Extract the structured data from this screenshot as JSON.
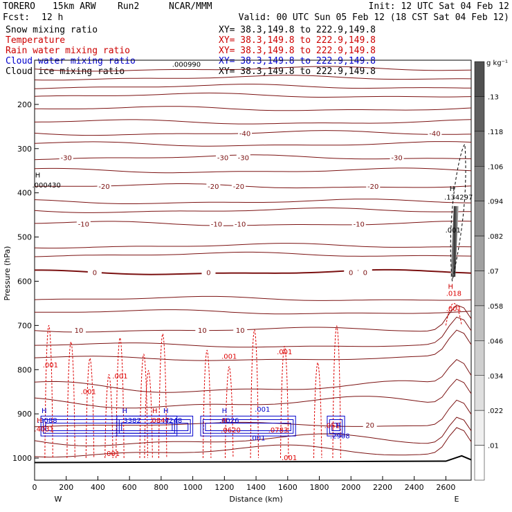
{
  "header": {
    "model": "TORERO",
    "resolution": "15km ARW",
    "run": "Run2",
    "org": "NCAR/MMM",
    "init": "Init: 12 UTC Sat 04 Feb 12",
    "fcst_label": "Fcst:",
    "fcst_value": "12 h",
    "valid": "Valid: 00 UTC Sun 05 Feb 12 (18 CST Sat 04 Feb 12)"
  },
  "fields": [
    {
      "name": "Snow mixing ratio",
      "xy": "XY=  38.3,149.8 to 222.9,149.8",
      "color": "#000000"
    },
    {
      "name": "Temperature",
      "xy": "XY=  38.3,149.8 to 222.9,149.8",
      "color": "#cc0000"
    },
    {
      "name": "Rain water mixing ratio",
      "xy": "XY=  38.3,149.8 to 222.9,149.8",
      "color": "#cc0000"
    },
    {
      "name": "Cloud water mixing ratio",
      "xy": "XY=  38.3,149.8 to 222.9,149.8",
      "color": "#0000cc"
    },
    {
      "name": "Cloud ice mixing ratio",
      "xy": "XY=  38.3,149.8 to 222.9,149.8",
      "color": "#000000"
    }
  ],
  "chart_data": {
    "type": "cross-section contour",
    "xlabel": "Distance (km)",
    "ylabel": "Pressure (hPa)",
    "xlim": [
      0,
      2760
    ],
    "ylim": [
      1050,
      100
    ],
    "x_ticks": [
      0,
      200,
      400,
      600,
      800,
      1000,
      1200,
      1400,
      1600,
      1800,
      2000,
      2200,
      2400,
      2600
    ],
    "x_tick_labels": [
      "0",
      "200",
      "400",
      "600",
      "800",
      "1000",
      "1200",
      "1400",
      "1600",
      "1800",
      "2000",
      "2200",
      "2400",
      "2600"
    ],
    "y_ticks": [
      200,
      300,
      400,
      500,
      600,
      700,
      800,
      900,
      1000
    ],
    "y_tick_labels": [
      "200",
      "300",
      "400",
      "500",
      "600",
      "700",
      "800",
      "900",
      "1000"
    ],
    "endpoint_left": "W",
    "endpoint_right": "E",
    "temperature_contours": [
      {
        "value": "-40",
        "pressure": 265,
        "labels": [
          {
            "x": 1330
          },
          {
            "x": 2530
          }
        ]
      },
      {
        "value": "-30",
        "pressure": 320,
        "labels": [
          {
            "x": 200
          },
          {
            "x": 1190
          },
          {
            "x": 1320
          },
          {
            "x": 2290
          }
        ]
      },
      {
        "value": "-20",
        "pressure": 385,
        "labels": [
          {
            "x": 440
          },
          {
            "x": 1130
          },
          {
            "x": 1290
          },
          {
            "x": 2140
          }
        ]
      },
      {
        "value": "-10",
        "pressure": 470,
        "labels": [
          {
            "x": 310
          },
          {
            "x": 1150
          },
          {
            "x": 1300
          },
          {
            "x": 2050
          }
        ]
      },
      {
        "value": "0",
        "pressure": 580,
        "labels": [
          {
            "x": 380
          },
          {
            "x": 1100
          },
          {
            "x": 2000
          },
          {
            "x": 2090
          }
        ]
      },
      {
        "value": "10",
        "pressure": 710,
        "labels": [
          {
            "x": 280
          },
          {
            "x": 1060
          },
          {
            "x": 1300
          }
        ]
      },
      {
        "value": "20",
        "pressure": 925,
        "labels": [
          {
            "x": 2120
          }
        ]
      }
    ],
    "rain_water_labels": [
      {
        "text": ".001",
        "x": 100,
        "p": 795
      },
      {
        "text": ".001",
        "x": 340,
        "p": 855
      },
      {
        "text": ".001",
        "x": 540,
        "p": 820
      },
      {
        "text": ".001",
        "x": 1230,
        "p": 775
      },
      {
        "text": ".001",
        "x": 1580,
        "p": 765
      },
      {
        "text": ".001",
        "x": 490,
        "p": 995
      },
      {
        "text": ".001",
        "x": 1610,
        "p": 1005
      },
      {
        "text": ".001",
        "x": 2650,
        "p": 667
      },
      {
        "text": ".018",
        "x": 2650,
        "p": 633
      },
      {
        "text": ".4031",
        "x": 60,
        "p": 940
      },
      {
        "text": ".0847",
        "x": 790,
        "p": 920
      },
      {
        "text": ".0620",
        "x": 1240,
        "p": 942
      },
      {
        "text": ".0783",
        "x": 1540,
        "p": 942
      },
      {
        "text": ".051",
        "x": 1880,
        "p": 932
      }
    ],
    "cloud_water_labels": [
      {
        "text": ".3088",
        "x": 80,
        "p": 920
      },
      {
        "text": ".3382",
        "x": 610,
        "p": 920
      },
      {
        "text": ".4248",
        "x": 870,
        "p": 920
      },
      {
        "text": ".4026",
        "x": 1230,
        "p": 920
      },
      {
        "text": ".001",
        "x": 1440,
        "p": 895
      },
      {
        "text": ".001",
        "x": 1410,
        "p": 960
      },
      {
        "text": ".2908",
        "x": 1930,
        "p": 955
      }
    ],
    "cloud_ice_labels": [
      {
        "text": ".000430",
        "x": 75,
        "p": 388
      },
      {
        "text": ".000990",
        "x": 960,
        "p": 115
      },
      {
        "text": ".134297",
        "x": 2680,
        "p": 415
      },
      {
        "text": ".001",
        "x": 2645,
        "p": 490
      }
    ],
    "maxima_markers": [
      {
        "text": "H",
        "x": 20,
        "p": 365,
        "color": "#000000"
      },
      {
        "text": "H",
        "x": 2640,
        "p": 396,
        "color": "#000000"
      },
      {
        "text": "H",
        "x": 2630,
        "p": 617,
        "color": "#cc0000"
      },
      {
        "text": "H",
        "x": 30,
        "p": 920,
        "color": "#cc0000"
      },
      {
        "text": "H",
        "x": 60,
        "p": 898,
        "color": "#0000cc"
      },
      {
        "text": "H",
        "x": 570,
        "p": 898,
        "color": "#0000cc"
      },
      {
        "text": "H",
        "x": 760,
        "p": 898,
        "color": "#cc0000"
      },
      {
        "text": "H",
        "x": 830,
        "p": 898,
        "color": "#0000cc"
      },
      {
        "text": "H",
        "x": 1200,
        "p": 898,
        "color": "#0000cc"
      },
      {
        "text": "H",
        "x": 1200,
        "p": 920,
        "color": "#cc0000"
      },
      {
        "text": "H",
        "x": 1920,
        "p": 932,
        "color": "#0000cc"
      }
    ],
    "colorbar": {
      "unit": "g kg⁻¹",
      "labels": [
        ".13",
        ".118",
        ".106",
        ".094",
        ".082",
        ".07",
        ".058",
        ".046",
        ".034",
        ".022",
        ".01"
      ]
    }
  }
}
